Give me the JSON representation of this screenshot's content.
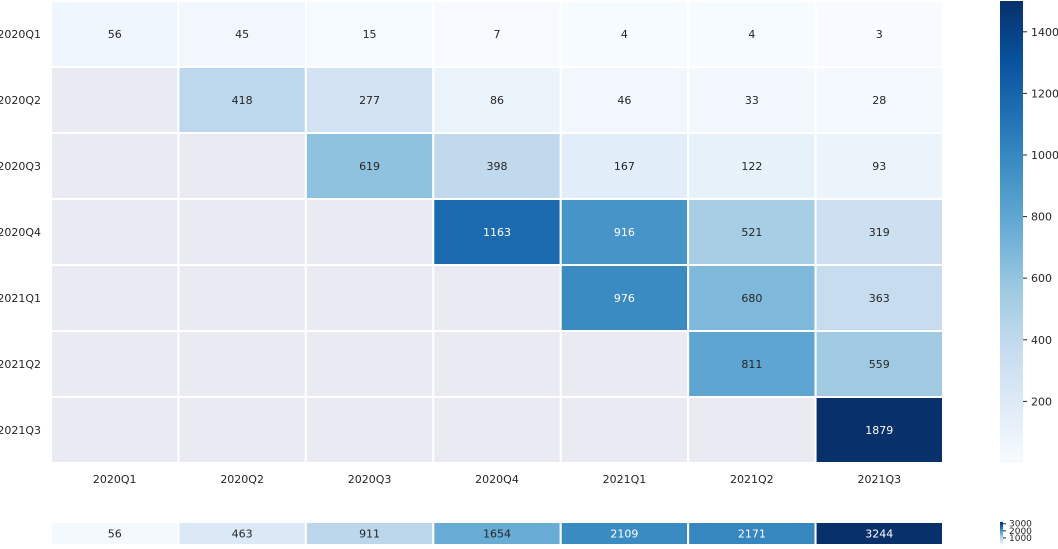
{
  "chart_data": [
    {
      "type": "heatmap",
      "title": "",
      "xlabel": "",
      "ylabel": "",
      "x_categories": [
        "2020Q1",
        "2020Q2",
        "2020Q3",
        "2020Q4",
        "2021Q1",
        "2021Q2",
        "2021Q3"
      ],
      "y_categories": [
        "2020Q1",
        "2020Q2",
        "2020Q3",
        "2020Q4",
        "2021Q1",
        "2021Q2",
        "2021Q3"
      ],
      "values": [
        [
          56,
          45,
          15,
          7,
          4,
          4,
          3
        ],
        [
          null,
          418,
          277,
          86,
          46,
          33,
          28
        ],
        [
          null,
          null,
          619,
          398,
          167,
          122,
          93
        ],
        [
          null,
          null,
          null,
          1163,
          916,
          521,
          319
        ],
        [
          null,
          null,
          null,
          null,
          976,
          680,
          363
        ],
        [
          null,
          null,
          null,
          null,
          null,
          811,
          559
        ],
        [
          null,
          null,
          null,
          null,
          null,
          null,
          1879
        ]
      ],
      "colormap": "Blues",
      "missing_color": "#eaeaf2",
      "grid_line_color": "#ffffff",
      "vmin": 0,
      "vmax": 1500,
      "colorbar": {
        "ticks": [
          200,
          400,
          600,
          800,
          1000,
          1200,
          1400
        ],
        "placement": "right"
      }
    },
    {
      "type": "heatmap",
      "title": "",
      "xlabel": "",
      "ylabel": "",
      "x_categories": [
        "2020Q1",
        "2020Q2",
        "2020Q3",
        "2020Q4",
        "2021Q1",
        "2021Q2",
        "2021Q3"
      ],
      "values": [
        [
          56,
          463,
          911,
          1654,
          2109,
          2171,
          3244
        ]
      ],
      "colormap": "Blues",
      "vmin": 0,
      "vmax": 3244,
      "colorbar": {
        "ticks": [
          1000,
          2000,
          3000
        ],
        "placement": "right"
      }
    }
  ]
}
